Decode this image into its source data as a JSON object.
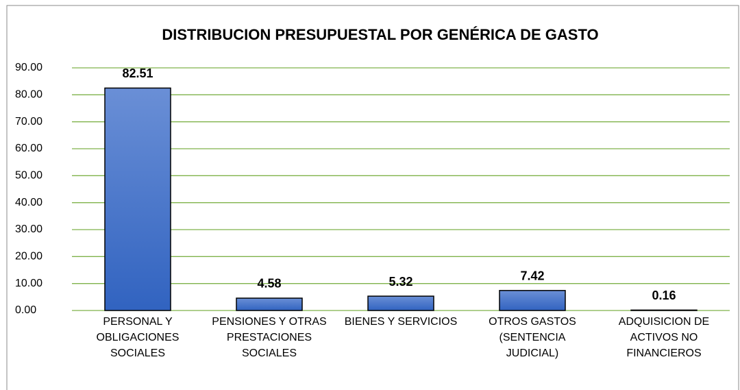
{
  "chart_data": {
    "type": "bar",
    "title": "DISTRIBUCION PRESUPUESTAL POR GENÉRICA DE GASTO",
    "categories": [
      "PERSONAL Y OBLIGACIONES SOCIALES",
      "PENSIONES Y OTRAS PRESTACIONES SOCIALES",
      "BIENES Y SERVICIOS",
      "OTROS GASTOS (SENTENCIA JUDICIAL)",
      "ADQUISICION DE ACTIVOS NO FINANCIEROS"
    ],
    "values": [
      82.51,
      4.58,
      5.32,
      7.42,
      0.16
    ],
    "color": "#4472c4",
    "ylim": [
      0,
      90
    ],
    "yticks": [
      {
        "value": 0,
        "label": "0.00"
      },
      {
        "value": 10,
        "label": "10.00"
      },
      {
        "value": 20,
        "label": "20.00"
      },
      {
        "value": 30,
        "label": "30.00"
      },
      {
        "value": 40,
        "label": "40.00"
      },
      {
        "value": 50,
        "label": "50.00"
      },
      {
        "value": 60,
        "label": "60.00"
      },
      {
        "value": 70,
        "label": "70.00"
      },
      {
        "value": 80,
        "label": "80.00"
      },
      {
        "value": 90,
        "label": "90.00"
      }
    ],
    "grid": true
  }
}
